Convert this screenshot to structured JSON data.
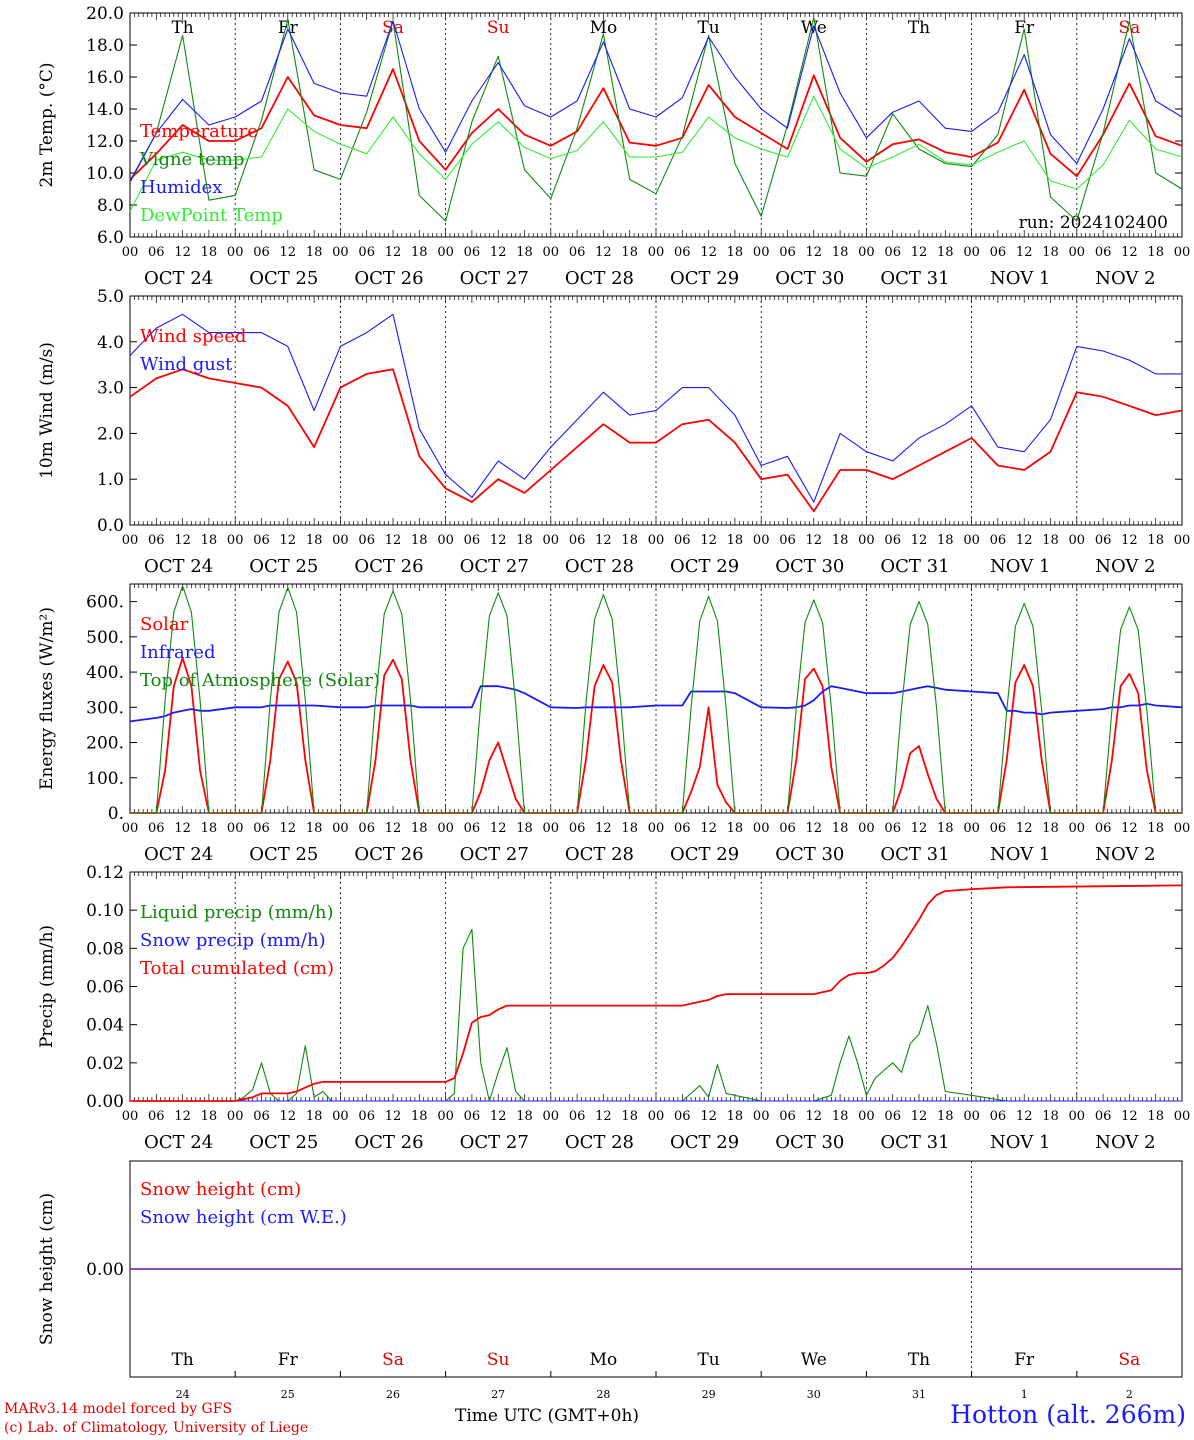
{
  "meta": {
    "run_label": "run: 2024102400",
    "model_note": "MARv3.14 model forced by GFS",
    "credit": "(c) Lab. of Climatology, University of Liege",
    "station": "Hotton (alt. 266m)",
    "time_axis_label": "Time UTC (GMT+0h)"
  },
  "days": {
    "dates": [
      "OCT 24",
      "OCT 25",
      "OCT 26",
      "OCT 27",
      "OCT 28",
      "OCT 29",
      "OCT 30",
      "OCT 31",
      "NOV  1",
      "NOV  2"
    ],
    "weekdays": [
      "Th",
      "Fr",
      "Sa",
      "Su",
      "Mo",
      "Tu",
      "We",
      "Th",
      "Fr",
      "Sa"
    ],
    "day_numbers": [
      "24",
      "25",
      "26",
      "27",
      "28",
      "29",
      "30",
      "31",
      "1",
      "2"
    ],
    "weekend_flags": [
      false,
      false,
      true,
      true,
      false,
      false,
      false,
      false,
      false,
      true
    ],
    "hour_ticks": [
      "00",
      "06",
      "12",
      "18"
    ],
    "end_tick": "00"
  },
  "colors": {
    "red": "#ff0000",
    "green": "#118811",
    "blue": "#1a1aff",
    "lightgreen": "#33ee33",
    "purple": "#7733aa",
    "weekday": "#000000",
    "weekend": "#e00000"
  },
  "chart_data": [
    {
      "type": "line",
      "ylabel": "2m Temp. (°C)",
      "ylim": [
        6.0,
        20.0
      ],
      "yticks": [
        "6.0",
        "8.0",
        "10.0",
        "12.0",
        "14.0",
        "16.0",
        "18.0",
        "20.0"
      ],
      "x_hours": [
        0,
        6,
        12,
        18,
        24,
        30,
        36,
        42,
        48,
        54,
        60,
        66,
        72,
        78,
        84,
        90,
        96,
        102,
        108,
        114,
        120,
        126,
        132,
        138,
        144,
        150,
        156,
        162,
        168,
        174,
        180,
        186,
        192,
        198,
        204,
        210,
        216,
        222,
        228,
        234,
        240
      ],
      "series": [
        {
          "name": "Temperature",
          "color": "red",
          "values": [
            9.6,
            11.2,
            13.0,
            12.0,
            12.0,
            12.8,
            16.0,
            13.6,
            13.0,
            12.8,
            16.5,
            12.0,
            10.2,
            12.5,
            14.0,
            12.4,
            11.7,
            12.6,
            15.3,
            11.9,
            11.7,
            12.2,
            15.5,
            13.5,
            12.5,
            11.5,
            16.1,
            12.2,
            10.7,
            11.8,
            12.1,
            11.3,
            11.0,
            11.9,
            15.2,
            11.2,
            9.8,
            12.4,
            15.6,
            12.3,
            11.7
          ]
        },
        {
          "name": "Vigne temp",
          "color": "green",
          "values": [
            9.4,
            12.5,
            18.6,
            8.3,
            8.6,
            13.3,
            19.6,
            10.2,
            9.6,
            13.8,
            19.5,
            8.6,
            7.0,
            13.2,
            17.3,
            10.2,
            8.4,
            12.8,
            18.7,
            9.6,
            8.7,
            12.3,
            18.6,
            10.6,
            7.3,
            13.0,
            19.7,
            10.0,
            9.8,
            13.7,
            11.5,
            10.6,
            10.4,
            12.4,
            19.0,
            8.5,
            7.0,
            12.5,
            19.5,
            10.0,
            9.0
          ]
        },
        {
          "name": "Humidex",
          "color": "blue",
          "values": [
            9.5,
            12.5,
            14.6,
            13.0,
            13.5,
            14.5,
            19.0,
            15.6,
            15.0,
            14.8,
            19.5,
            14.0,
            11.3,
            14.5,
            16.9,
            14.2,
            13.5,
            14.5,
            18.2,
            14.0,
            13.5,
            14.7,
            18.5,
            16.0,
            14.0,
            12.8,
            19.2,
            15.0,
            12.2,
            13.8,
            14.5,
            12.8,
            12.6,
            13.8,
            17.4,
            12.4,
            10.6,
            14.0,
            18.4,
            14.5,
            13.5
          ]
        },
        {
          "name": "DewPoint Temp",
          "color": "lightgreen",
          "values": [
            7.6,
            10.8,
            11.3,
            10.8,
            10.8,
            11.0,
            14.0,
            12.6,
            11.8,
            11.2,
            13.5,
            11.2,
            9.6,
            11.8,
            13.2,
            11.6,
            10.9,
            11.4,
            13.2,
            11.0,
            11.0,
            11.3,
            13.5,
            12.2,
            11.5,
            11.0,
            14.8,
            11.5,
            10.3,
            11.0,
            11.8,
            10.7,
            10.5,
            11.3,
            12.0,
            9.5,
            9.0,
            10.5,
            13.3,
            11.5,
            11.0
          ]
        }
      ]
    },
    {
      "type": "line",
      "ylabel": "10m Wind (m/s)",
      "ylim": [
        0.0,
        5.0
      ],
      "yticks": [
        "0.0",
        "1.0",
        "2.0",
        "3.0",
        "4.0",
        "5.0"
      ],
      "x_hours": [
        0,
        6,
        12,
        18,
        24,
        30,
        36,
        42,
        48,
        54,
        60,
        66,
        72,
        78,
        84,
        90,
        96,
        102,
        108,
        114,
        120,
        126,
        132,
        138,
        144,
        150,
        156,
        162,
        168,
        174,
        180,
        186,
        192,
        198,
        204,
        210,
        216,
        222,
        228,
        234,
        240
      ],
      "series": [
        {
          "name": "Wind speed",
          "color": "red",
          "values": [
            2.8,
            3.2,
            3.4,
            3.2,
            3.1,
            3.0,
            2.6,
            1.7,
            3.0,
            3.3,
            3.4,
            1.5,
            0.8,
            0.5,
            1.0,
            0.7,
            1.2,
            1.7,
            2.2,
            1.8,
            1.8,
            2.2,
            2.3,
            1.8,
            1.0,
            1.1,
            0.3,
            1.2,
            1.2,
            1.0,
            1.3,
            1.6,
            1.9,
            1.3,
            1.2,
            1.6,
            2.9,
            2.8,
            2.6,
            2.4,
            2.5
          ]
        },
        {
          "name": "Wind gust",
          "color": "blue",
          "values": [
            3.7,
            4.3,
            4.6,
            4.2,
            4.2,
            4.2,
            3.9,
            2.5,
            3.9,
            4.2,
            4.6,
            2.1,
            1.1,
            0.6,
            1.4,
            1.0,
            1.7,
            2.3,
            2.9,
            2.4,
            2.5,
            3.0,
            3.0,
            2.4,
            1.3,
            1.5,
            0.5,
            2.0,
            1.6,
            1.4,
            1.9,
            2.2,
            2.6,
            1.7,
            1.6,
            2.3,
            3.9,
            3.8,
            3.6,
            3.3,
            3.3
          ]
        }
      ]
    },
    {
      "type": "line",
      "ylabel": "Energy fluxes (W/m²)",
      "ylim": [
        0,
        650
      ],
      "yticks": [
        "0.",
        "100.",
        "200.",
        "300.",
        "400.",
        "500.",
        "600."
      ],
      "x_hours": [
        0,
        6,
        8,
        10,
        12,
        14,
        16,
        18,
        24,
        30,
        32,
        34,
        36,
        38,
        40,
        42,
        48,
        54,
        56,
        58,
        60,
        62,
        64,
        66,
        72,
        78,
        80,
        82,
        84,
        86,
        88,
        90,
        96,
        102,
        104,
        106,
        108,
        110,
        112,
        114,
        120,
        126,
        128,
        130,
        132,
        134,
        136,
        138,
        144,
        150,
        152,
        154,
        156,
        158,
        160,
        162,
        168,
        174,
        176,
        178,
        180,
        182,
        184,
        186,
        192,
        198,
        200,
        202,
        204,
        206,
        208,
        210,
        216,
        222,
        224,
        226,
        228,
        230,
        232,
        234,
        240
      ],
      "series": [
        {
          "name": "Solar",
          "color": "red",
          "values": [
            0,
            0,
            120,
            360,
            440,
            360,
            120,
            0,
            0,
            0,
            150,
            380,
            430,
            370,
            150,
            0,
            0,
            0,
            150,
            390,
            435,
            380,
            150,
            0,
            0,
            0,
            60,
            150,
            200,
            120,
            40,
            0,
            0,
            0,
            150,
            360,
            420,
            370,
            150,
            0,
            0,
            0,
            60,
            130,
            300,
            80,
            30,
            0,
            0,
            0,
            150,
            380,
            410,
            360,
            130,
            0,
            0,
            0,
            70,
            170,
            190,
            110,
            40,
            0,
            0,
            0,
            150,
            370,
            420,
            360,
            150,
            0,
            0,
            0,
            150,
            360,
            395,
            340,
            120,
            0,
            0
          ]
        },
        {
          "name": "Infrared",
          "color": "blue",
          "values": [
            260,
            270,
            275,
            285,
            290,
            295,
            290,
            290,
            300,
            300,
            305,
            305,
            305,
            305,
            305,
            305,
            300,
            300,
            305,
            305,
            305,
            305,
            305,
            300,
            300,
            300,
            360,
            360,
            360,
            355,
            350,
            340,
            300,
            298,
            300,
            300,
            300,
            300,
            300,
            300,
            305,
            305,
            345,
            345,
            345,
            345,
            345,
            340,
            300,
            298,
            300,
            305,
            320,
            345,
            360,
            355,
            340,
            340,
            345,
            350,
            355,
            360,
            355,
            350,
            345,
            340,
            290,
            290,
            285,
            285,
            280,
            285,
            290,
            295,
            300,
            300,
            305,
            305,
            310,
            305,
            300
          ]
        },
        {
          "name": "Top of Atmosphere (Solar)",
          "color": "green",
          "values": [
            0,
            0,
            320,
            570,
            645,
            570,
            320,
            0,
            0,
            0,
            320,
            570,
            640,
            570,
            320,
            0,
            0,
            0,
            320,
            565,
            630,
            565,
            320,
            0,
            0,
            0,
            310,
            560,
            625,
            560,
            310,
            0,
            0,
            0,
            310,
            550,
            620,
            550,
            310,
            0,
            0,
            0,
            300,
            545,
            615,
            545,
            300,
            0,
            0,
            0,
            300,
            540,
            605,
            540,
            300,
            0,
            0,
            0,
            300,
            535,
            600,
            535,
            300,
            0,
            0,
            0,
            290,
            530,
            595,
            530,
            290,
            0,
            0,
            0,
            290,
            520,
            585,
            520,
            290,
            0,
            0
          ]
        }
      ]
    },
    {
      "type": "line",
      "ylabel": "Precip (mm/h)",
      "ylim": [
        0.0,
        0.12
      ],
      "yticks": [
        "0.00",
        "0.02",
        "0.04",
        "0.06",
        "0.08",
        "0.10",
        "0.12"
      ],
      "x_hours": [
        0,
        24,
        26,
        28,
        30,
        32,
        34,
        36,
        38,
        40,
        42,
        44,
        46,
        48,
        54,
        72,
        74,
        76,
        78,
        80,
        82,
        84,
        86,
        88,
        90,
        96,
        120,
        126,
        130,
        132,
        134,
        136,
        144,
        156,
        160,
        162,
        164,
        166,
        168,
        170,
        172,
        174,
        176,
        178,
        180,
        182,
        184,
        186,
        192,
        200,
        240
      ],
      "series": [
        {
          "name": "Liquid precip (mm/h)",
          "color": "green",
          "values": [
            0,
            0,
            0.002,
            0.006,
            0.02,
            0.004,
            0,
            0,
            0.004,
            0.029,
            0.002,
            0.005,
            0,
            0,
            0,
            0,
            0.004,
            0.08,
            0.09,
            0.02,
            0,
            0.015,
            0.028,
            0.005,
            0,
            0,
            0,
            0,
            0.008,
            0.002,
            0.019,
            0.004,
            0,
            0,
            0.003,
            0.02,
            0.034,
            0.02,
            0.003,
            0.012,
            0.016,
            0.02,
            0.015,
            0.03,
            0.035,
            0.05,
            0.03,
            0.005,
            0.003,
            0,
            0
          ]
        },
        {
          "name": "Snow precip (mm/h)",
          "color": "blue",
          "values": [
            0,
            0,
            0,
            0,
            0,
            0,
            0,
            0,
            0,
            0,
            0,
            0,
            0,
            0,
            0,
            0,
            0,
            0,
            0,
            0,
            0,
            0,
            0,
            0,
            0,
            0,
            0,
            0,
            0,
            0,
            0,
            0,
            0,
            0,
            0,
            0,
            0,
            0,
            0,
            0,
            0,
            0,
            0,
            0,
            0,
            0,
            0,
            0,
            0,
            0,
            0
          ]
        },
        {
          "name": "Total cumulated (cm)",
          "color": "red",
          "values": [
            0,
            0,
            0.001,
            0.002,
            0.004,
            0.004,
            0.004,
            0.004,
            0.005,
            0.007,
            0.009,
            0.01,
            0.01,
            0.01,
            0.01,
            0.01,
            0.012,
            0.025,
            0.041,
            0.044,
            0.045,
            0.048,
            0.05,
            0.05,
            0.05,
            0.05,
            0.05,
            0.05,
            0.052,
            0.053,
            0.055,
            0.056,
            0.056,
            0.056,
            0.058,
            0.063,
            0.066,
            0.067,
            0.067,
            0.068,
            0.071,
            0.075,
            0.081,
            0.088,
            0.095,
            0.103,
            0.108,
            0.11,
            0.111,
            0.112,
            0.113
          ]
        }
      ]
    },
    {
      "type": "line",
      "ylabel": "Snow height (cm)",
      "ylim": [
        -0.5,
        0.5
      ],
      "yticks": [
        "0.00"
      ],
      "x_hours": [
        0,
        240
      ],
      "series": [
        {
          "name": "Snow height (cm)",
          "color": "red",
          "values": [
            0,
            0
          ]
        },
        {
          "name": "Snow height (cm W.E.)",
          "color": "blue",
          "values": [
            0,
            0
          ]
        }
      ]
    }
  ]
}
